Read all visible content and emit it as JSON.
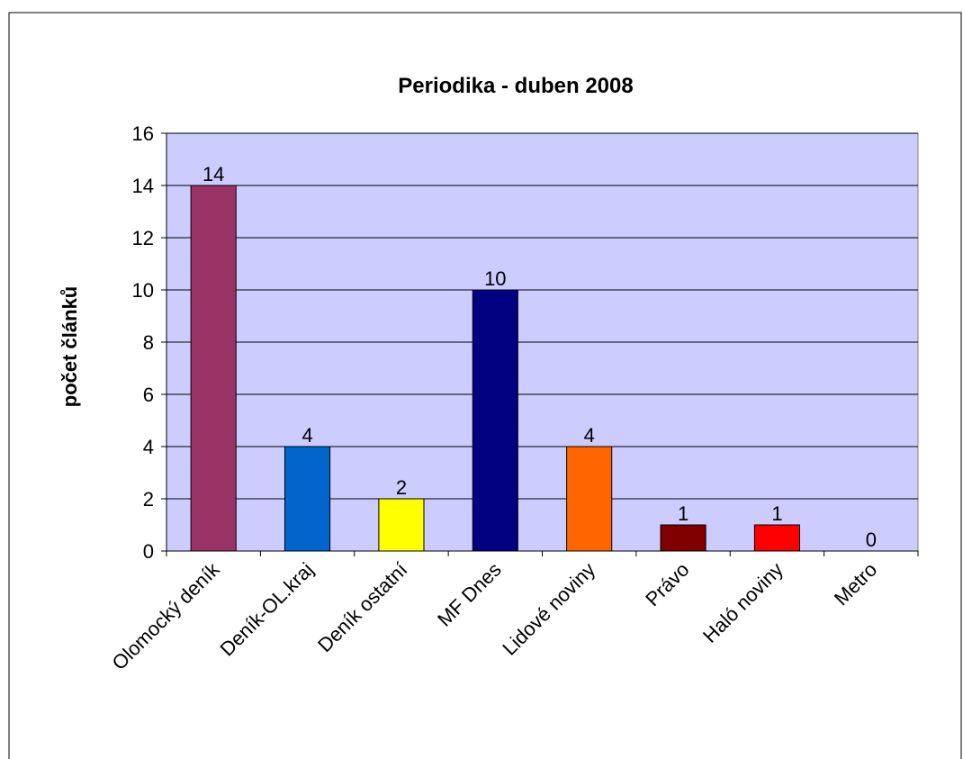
{
  "chart_data": {
    "type": "bar",
    "title": "Periodika - duben 2008",
    "ylabel": "počet článků",
    "categories": [
      "Olomocký deník",
      "Deník-OL.kraj",
      "Deník ostatní",
      "MF Dnes",
      "Lidové noviny",
      "Právo",
      "Haló noviny",
      "Metro"
    ],
    "values": [
      14,
      4,
      2,
      10,
      4,
      1,
      1,
      0
    ],
    "colors": [
      "#993366",
      "#0066cc",
      "#ffff00",
      "#000080",
      "#ff6600",
      "#800000",
      "#ff0000",
      "#00ccff"
    ],
    "ylim": [
      0,
      16
    ],
    "yticks": [
      0,
      2,
      4,
      6,
      8,
      10,
      12,
      14,
      16
    ],
    "grid": true,
    "plot_background": "#ccccff"
  }
}
